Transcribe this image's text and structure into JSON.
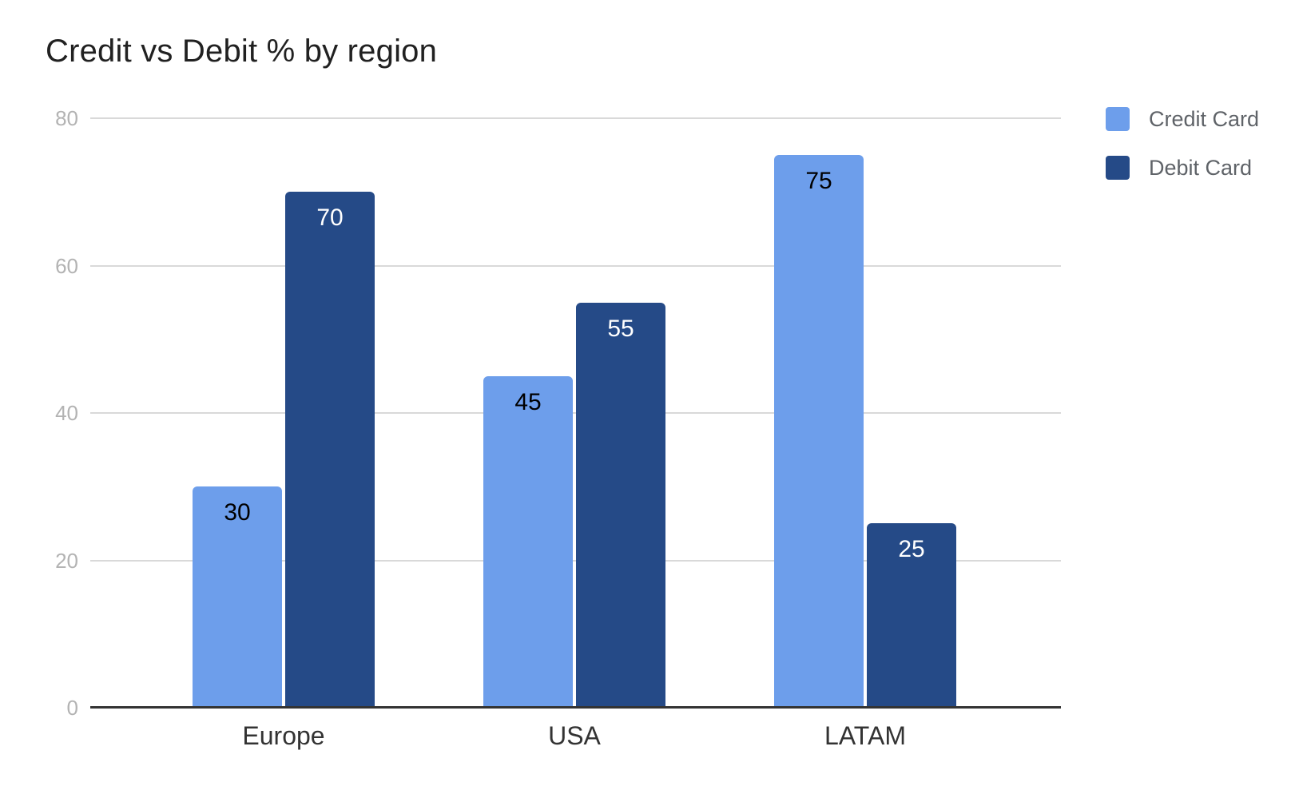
{
  "chart_data": {
    "type": "bar",
    "title": "Credit vs Debit % by region",
    "categories": [
      "Europe",
      "USA",
      "LATAM"
    ],
    "series": [
      {
        "name": "Credit Card",
        "values": [
          30,
          45,
          75
        ],
        "color": "#6d9eeb",
        "data_label_color": "#000000"
      },
      {
        "name": "Debit Card",
        "values": [
          70,
          55,
          25
        ],
        "color": "#254a87",
        "data_label_color": "#ffffff"
      }
    ],
    "y_ticks": [
      0,
      20,
      40,
      60,
      80
    ],
    "ylim": [
      0,
      80
    ],
    "xlabel": "",
    "ylabel": "",
    "grid": true,
    "data_labels": true,
    "legend_position": "right-top",
    "colors": {
      "background": "#ffffff",
      "title": "#212121",
      "gridline": "#d9d9d9",
      "axis_line": "#333333",
      "tick_label": "#b3b3b3",
      "category_label": "#333333",
      "legend_label": "#5f6368"
    }
  }
}
